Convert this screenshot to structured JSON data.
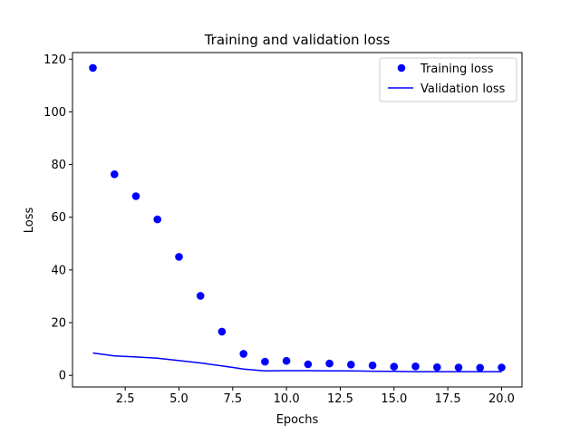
{
  "chart_data": {
    "type": "line",
    "title": "Training and validation loss",
    "xlabel": "Epochs",
    "ylabel": "Loss",
    "xlim": [
      0.05,
      20.95
    ],
    "ylim": [
      -4.4,
      122.5
    ],
    "xticks": [
      2.5,
      5.0,
      7.5,
      10.0,
      12.5,
      15.0,
      17.5,
      20.0
    ],
    "xtick_labels": [
      "2.5",
      "5.0",
      "7.5",
      "10.0",
      "12.5",
      "15.0",
      "17.5",
      "20.0"
    ],
    "yticks": [
      0,
      20,
      40,
      60,
      80,
      100,
      120
    ],
    "ytick_labels": [
      "0",
      "20",
      "40",
      "60",
      "80",
      "100",
      "120"
    ],
    "legend_position": "top-right",
    "series": [
      {
        "name": "Training loss",
        "kind": "scatter",
        "color": "#0000ff",
        "x": [
          1,
          2,
          3,
          4,
          5,
          6,
          7,
          8,
          9,
          10,
          11,
          12,
          13,
          14,
          15,
          16,
          17,
          18,
          19,
          20
        ],
        "values": [
          116.7,
          76.3,
          68.0,
          59.2,
          45.0,
          30.2,
          16.6,
          8.2,
          5.2,
          5.5,
          4.2,
          4.5,
          4.1,
          3.8,
          3.3,
          3.4,
          3.1,
          3.0,
          2.9,
          3.0
        ]
      },
      {
        "name": "Validation loss",
        "kind": "line",
        "color": "#0000ff",
        "x": [
          1,
          2,
          3,
          4,
          5,
          6,
          7,
          8,
          9,
          10,
          11,
          12,
          13,
          14,
          15,
          16,
          17,
          18,
          19,
          20
        ],
        "values": [
          8.5,
          7.4,
          7.0,
          6.5,
          5.6,
          4.7,
          3.6,
          2.4,
          1.7,
          1.8,
          1.8,
          1.7,
          1.7,
          1.6,
          1.5,
          1.4,
          1.4,
          1.4,
          1.4,
          1.4
        ]
      }
    ]
  }
}
